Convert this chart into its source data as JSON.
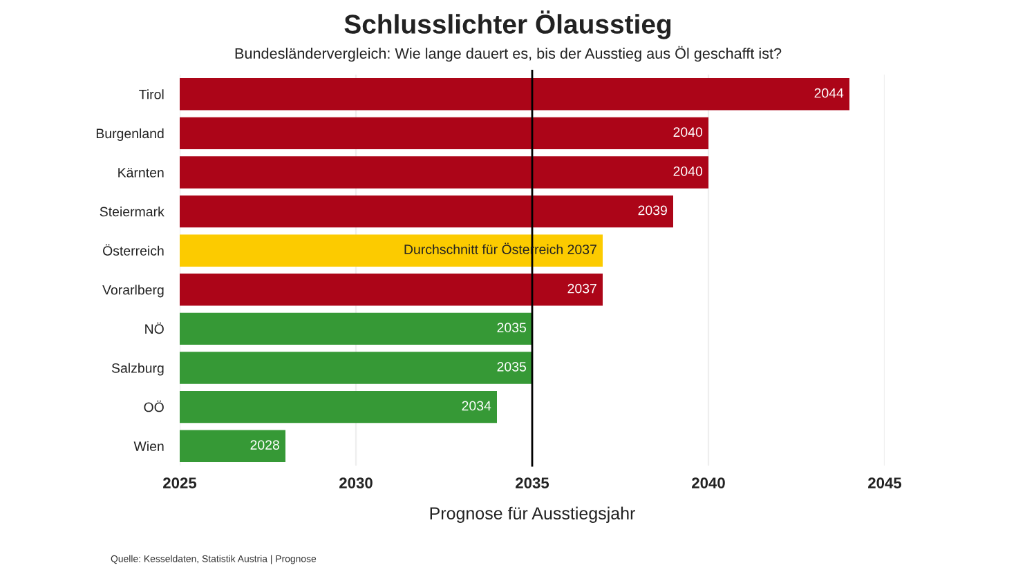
{
  "chart_data": {
    "type": "bar",
    "orientation": "horizontal",
    "title": "Schlusslichter Ölausstieg",
    "subtitle": "Bundesländervergleich: Wie lange dauert es, bis der Ausstieg aus Öl geschafft ist?",
    "xlabel": "Prognose für Ausstiegsjahr",
    "categories": [
      "Tirol",
      "Burgenland",
      "Kärnten",
      "Steiermark",
      "Österreich",
      "Vorarlberg",
      "NÖ",
      "Salzburg",
      "OÖ",
      "Wien"
    ],
    "values": [
      2044,
      2040,
      2040,
      2039,
      2037,
      2037,
      2035,
      2035,
      2034,
      2028
    ],
    "colors": [
      "#ac0518",
      "#ac0518",
      "#ac0518",
      "#ac0518",
      "#fccb00",
      "#ac0518",
      "#369936",
      "#369936",
      "#369936",
      "#369936"
    ],
    "value_labels": [
      "2044",
      "2040",
      "2040",
      "2039",
      "Durchschnitt für Österreich 2037",
      "2037",
      "2035",
      "2035",
      "2034",
      "2028"
    ],
    "xlim": [
      2025,
      2045
    ],
    "xticks": [
      2025,
      2030,
      2035,
      2040,
      2045
    ],
    "grid": "x",
    "legend": false,
    "ref_lines": [
      {
        "axis": "x",
        "value": 2035,
        "color": "#000000"
      }
    ],
    "annotations": [
      "Quelle: Kesseldaten, Statistik Austria | Prognose"
    ]
  }
}
